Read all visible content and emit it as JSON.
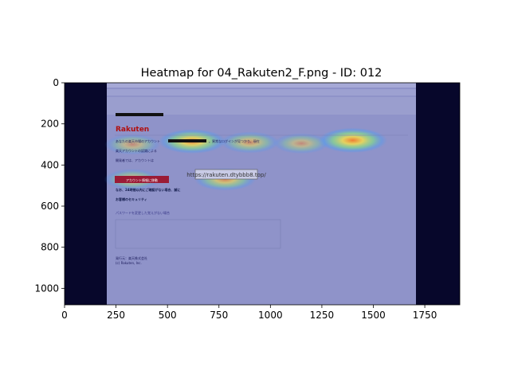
{
  "chart_data": {
    "type": "heatmap",
    "title": "Heatmap for 04_Rakuten2_F.png - ID: 012",
    "xlabel": "",
    "ylabel": "",
    "xlim": [
      0,
      1920
    ],
    "ylim": [
      1080,
      0
    ],
    "x_ticks": [
      0,
      250,
      500,
      750,
      1000,
      1250,
      1500,
      1750
    ],
    "y_ticks": [
      0,
      200,
      400,
      600,
      800,
      1000
    ],
    "grid": false,
    "underlay": "phishing email screenshot (Rakuten)",
    "hotspots": [
      {
        "x": 620,
        "y": 285,
        "intensity": 0.9
      },
      {
        "x": 900,
        "y": 290,
        "intensity": 0.6
      },
      {
        "x": 1150,
        "y": 295,
        "intensity": 0.5
      },
      {
        "x": 1400,
        "y": 280,
        "intensity": 0.95
      },
      {
        "x": 330,
        "y": 300,
        "intensity": 0.5
      },
      {
        "x": 330,
        "y": 470,
        "intensity": 0.55
      },
      {
        "x": 780,
        "y": 470,
        "intensity": 0.7
      }
    ]
  },
  "email": {
    "brand": "Rakuten",
    "url_box": "https://rakuten.dtybbb8.top/",
    "button_label": "アカウント情報に移動",
    "line1": "あなたの楽天市場のアカウント",
    "line1b": "。異常なログインが見つかり、現在",
    "line2": "楽天アカウントの認識による",
    "line3": "開発者では、アカウントは",
    "warn1": "なお、24時間以内にご確認がない場合、誠に",
    "warn2": "お客様のセキュリティ",
    "pw_line": "パスワードを変更した覚えがない場合",
    "footer1": "発行元：楽天株式会社",
    "footer2": "(c) Rakuten, Inc."
  }
}
